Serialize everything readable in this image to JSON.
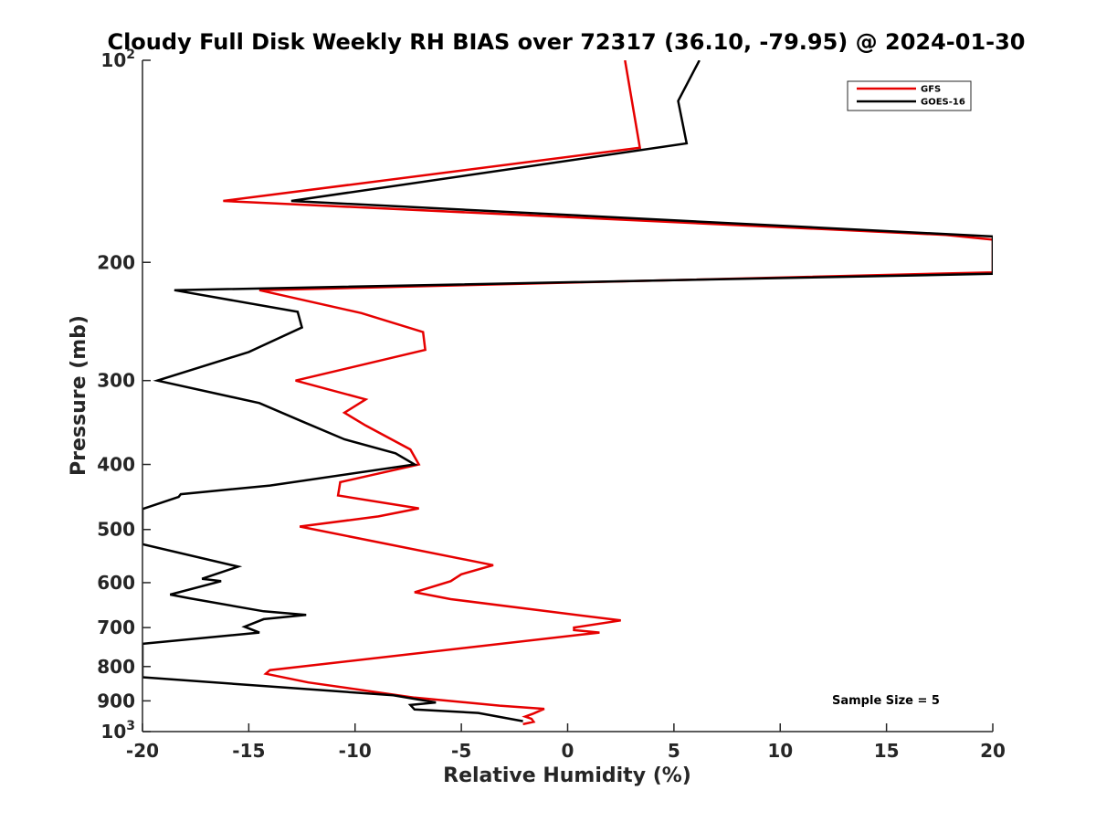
{
  "chart_data": {
    "type": "line",
    "title": "Cloudy Full Disk Weekly RH BIAS over 72317 (36.10, -79.95) @ 2024-01-30",
    "xlabel": "Relative Humidity (%)",
    "ylabel": "Pressure (mb)",
    "xlim": [
      -20,
      20
    ],
    "ylim": [
      100,
      1000
    ],
    "y_scale": "log",
    "y_reversed": true,
    "grid": false,
    "legend_position": "top-right",
    "xticks": [
      "-20",
      "-15",
      "-10",
      "-5",
      "0",
      "5",
      "10",
      "15",
      "20"
    ],
    "yticks": [
      {
        "value": 100,
        "base": "10",
        "exp": "2"
      },
      {
        "value": 200,
        "base": "200",
        "exp": ""
      },
      {
        "value": 300,
        "base": "300",
        "exp": ""
      },
      {
        "value": 400,
        "base": "400",
        "exp": ""
      },
      {
        "value": 500,
        "base": "500",
        "exp": ""
      },
      {
        "value": 600,
        "base": "600",
        "exp": ""
      },
      {
        "value": 700,
        "base": "700",
        "exp": ""
      },
      {
        "value": 800,
        "base": "800",
        "exp": ""
      },
      {
        "value": 900,
        "base": "900",
        "exp": ""
      },
      {
        "value": 1000,
        "base": "10",
        "exp": "3"
      }
    ],
    "annotation": "Sample Size = 5",
    "series": [
      {
        "name": "GFS",
        "color": "#e60000",
        "points": [
          [
            2.7,
            100
          ],
          [
            3.4,
            135
          ],
          [
            -16.2,
            162
          ],
          [
            17.8,
            182
          ],
          [
            20.0,
            185
          ],
          [
            20.0,
            207
          ],
          [
            -14.5,
            220
          ],
          [
            -9.7,
            238
          ],
          [
            -6.8,
            254
          ],
          [
            -6.7,
            270
          ],
          [
            -12.8,
            300
          ],
          [
            -9.5,
            320
          ],
          [
            -10.5,
            335
          ],
          [
            -9.5,
            350
          ],
          [
            -7.4,
            380
          ],
          [
            -7.0,
            400
          ],
          [
            -10.7,
            425
          ],
          [
            -10.8,
            445
          ],
          [
            -7.0,
            465
          ],
          [
            -8.9,
            478
          ],
          [
            -12.6,
            495
          ],
          [
            -3.5,
            565
          ],
          [
            -5.0,
            583
          ],
          [
            -5.5,
            597
          ],
          [
            -7.2,
            620
          ],
          [
            -5.5,
            635
          ],
          [
            2.5,
            683
          ],
          [
            0.3,
            700
          ],
          [
            0.3,
            706
          ],
          [
            1.5,
            712
          ],
          [
            -14.0,
            810
          ],
          [
            -14.2,
            820
          ],
          [
            -12.2,
            845
          ],
          [
            -7.2,
            890
          ],
          [
            -3.2,
            915
          ],
          [
            -1.1,
            925
          ],
          [
            -1.6,
            940
          ],
          [
            -2.0,
            950
          ],
          [
            -1.7,
            957
          ],
          [
            -1.6,
            967
          ],
          [
            -2.1,
            975
          ]
        ]
      },
      {
        "name": "GOES-16",
        "color": "#000000",
        "points": [
          [
            6.2,
            100
          ],
          [
            5.2,
            115
          ],
          [
            5.6,
            133
          ],
          [
            -13.0,
            162
          ],
          [
            20.0,
            183
          ],
          [
            20.0,
            208
          ],
          [
            -18.5,
            220
          ],
          [
            -12.7,
            237
          ],
          [
            -12.5,
            250
          ],
          [
            -15.0,
            272
          ],
          [
            -19.3,
            300
          ],
          [
            -14.5,
            324
          ],
          [
            -12.5,
            345
          ],
          [
            -10.5,
            367
          ],
          [
            -8.1,
            385
          ],
          [
            -7.2,
            400
          ],
          [
            -14.0,
            430
          ],
          [
            -18.2,
            443
          ],
          [
            -18.3,
            447
          ],
          [
            -20.0,
            466
          ],
          [
            -20.0,
            526
          ],
          [
            -15.5,
            568
          ],
          [
            -17.2,
            592
          ],
          [
            -16.3,
            597
          ],
          [
            -18.7,
            625
          ],
          [
            -17.8,
            633
          ],
          [
            -14.3,
            662
          ],
          [
            -12.3,
            670
          ],
          [
            -14.3,
            680
          ],
          [
            -15.2,
            698
          ],
          [
            -14.5,
            712
          ],
          [
            -20.0,
            740
          ],
          [
            -20.0,
            830
          ],
          [
            -8.2,
            883
          ],
          [
            -6.2,
            905
          ],
          [
            -7.4,
            913
          ],
          [
            -7.2,
            927
          ],
          [
            -4.2,
            938
          ],
          [
            -2.1,
            965
          ]
        ]
      }
    ]
  }
}
